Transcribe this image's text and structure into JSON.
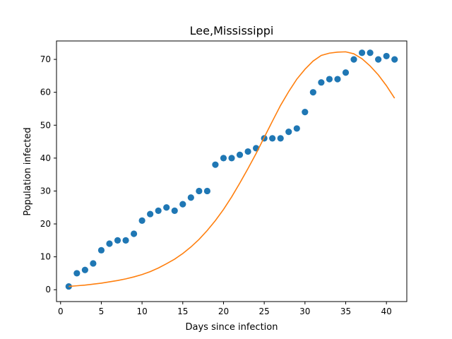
{
  "chart_data": {
    "type": "scatter",
    "title": "Lee,Mississippi",
    "xlabel": "Days since infection",
    "ylabel": "Population infected",
    "xlim": [
      -0.5,
      42.5
    ],
    "ylim": [
      -3.6,
      75.6
    ],
    "xticks": [
      0,
      5,
      10,
      15,
      20,
      25,
      30,
      35,
      40
    ],
    "yticks": [
      0,
      10,
      20,
      30,
      40,
      50,
      60,
      70
    ],
    "grid": false,
    "legend": "none",
    "series": [
      {
        "type": "scatter",
        "color": "#1f77b4",
        "x": [
          1,
          2,
          3,
          4,
          5,
          6,
          7,
          8,
          9,
          10,
          11,
          12,
          13,
          14,
          15,
          16,
          17,
          18,
          19,
          20,
          21,
          22,
          23,
          24,
          25,
          26,
          27,
          28,
          29,
          30,
          31,
          32,
          33,
          34,
          35,
          36,
          37,
          38,
          39,
          40,
          41
        ],
        "y": [
          1,
          5,
          6,
          8,
          12,
          14,
          15,
          15,
          17,
          21,
          23,
          24,
          25,
          24,
          26,
          28,
          30,
          30,
          38,
          40,
          40,
          41,
          42,
          43,
          46,
          46,
          46,
          48,
          49,
          54,
          60,
          63,
          64,
          64,
          66,
          70,
          72,
          72,
          70,
          71,
          70
        ]
      },
      {
        "type": "line",
        "color": "#ff7f0e",
        "x": [
          1,
          2,
          3,
          4,
          5,
          6,
          7,
          8,
          9,
          10,
          11,
          12,
          13,
          14,
          15,
          16,
          17,
          18,
          19,
          20,
          21,
          22,
          23,
          24,
          25,
          26,
          27,
          28,
          29,
          30,
          31,
          32,
          33,
          34,
          35,
          36,
          37,
          38,
          39,
          40,
          41
        ],
        "y": [
          1.0,
          1.2,
          1.4,
          1.7,
          2.0,
          2.4,
          2.8,
          3.3,
          3.9,
          4.6,
          5.5,
          6.6,
          7.9,
          9.3,
          11.0,
          13.0,
          15.3,
          18.0,
          21.0,
          24.4,
          28.2,
          32.4,
          36.8,
          41.4,
          46.3,
          51.2,
          56.0,
          60.2,
          64.0,
          67.0,
          69.5,
          71.2,
          71.9,
          72.2,
          72.3,
          71.7,
          70.2,
          68.0,
          65.3,
          62.0,
          58.2
        ]
      }
    ]
  }
}
